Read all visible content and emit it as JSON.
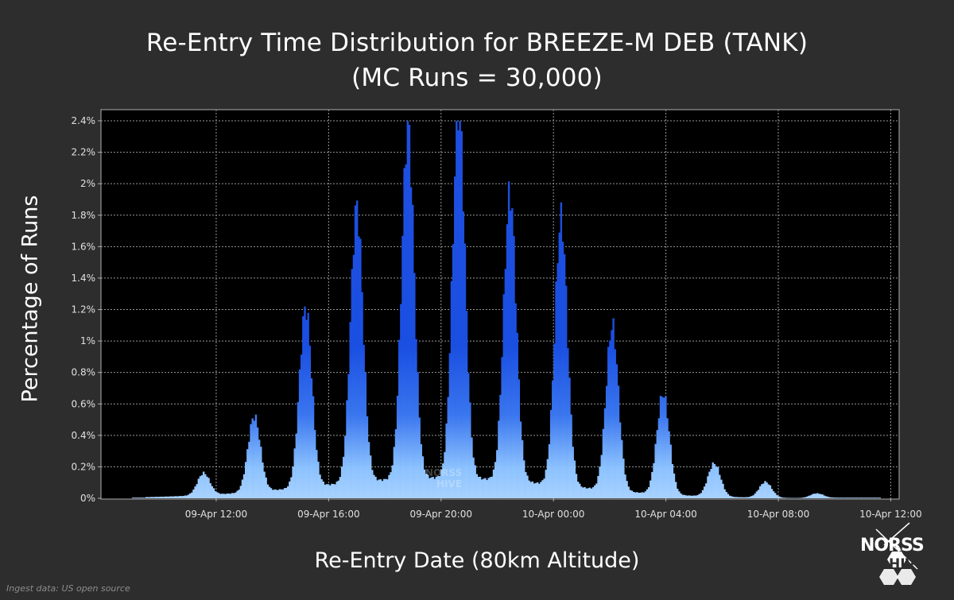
{
  "chart_data": {
    "type": "bar",
    "title": "Re-Entry Time Distribution for BREEZE-M DEB (TANK)",
    "subtitle": "(MC Runs = 30,000)",
    "xlabel": "Re-Entry Date (80km Altitude)",
    "ylabel": "Percentage of Runs",
    "x_unit": "hours from 09-Apr 00:00",
    "xlim": [
      7.9,
      36.3
    ],
    "ylim": [
      0,
      2.4
    ],
    "y_ticks": [
      0,
      0.2,
      0.4,
      0.6,
      0.8,
      1,
      1.2,
      1.4,
      1.6,
      1.8,
      2,
      2.2,
      2.4
    ],
    "y_tick_labels": [
      "0%",
      "0.2%",
      "0.4%",
      "0.6%",
      "0.8%",
      "1%",
      "1.2%",
      "1.4%",
      "1.6%",
      "1.8%",
      "2%",
      "2.2%",
      "2.4%"
    ],
    "x_ticks": [
      12,
      16,
      20,
      24,
      28,
      32,
      36
    ],
    "x_tick_labels": [
      "09-Apr 12:00",
      "09-Apr 16:00",
      "09-Apr 20:00",
      "10-Apr 00:00",
      "10-Apr 04:00",
      "10-Apr 08:00",
      "10-Apr 12:00"
    ],
    "grid": true,
    "legend": false,
    "bar_color_top": "#1f4fe0",
    "bar_color_bottom": "#8cc2ff",
    "peaks": [
      {
        "time": 11.55,
        "value": 0.14
      },
      {
        "time": 13.35,
        "value": 0.48
      },
      {
        "time": 15.18,
        "value": 1.14
      },
      {
        "time": 17.0,
        "value": 1.75
      },
      {
        "time": 18.82,
        "value": 2.24
      },
      {
        "time": 20.63,
        "value": 2.36
      },
      {
        "time": 22.45,
        "value": 1.83
      },
      {
        "time": 24.27,
        "value": 1.7
      },
      {
        "time": 26.09,
        "value": 1.05
      },
      {
        "time": 27.9,
        "value": 0.64
      },
      {
        "time": 29.72,
        "value": 0.21
      },
      {
        "time": 31.54,
        "value": 0.1
      },
      {
        "time": 33.36,
        "value": 0.03
      }
    ]
  },
  "watermark": {
    "line1": "NORSS",
    "line2": "HIVE"
  },
  "footnote": "Ingest data: US open source",
  "logo": {
    "line1": "NORSS",
    "line2": "HIVE"
  }
}
